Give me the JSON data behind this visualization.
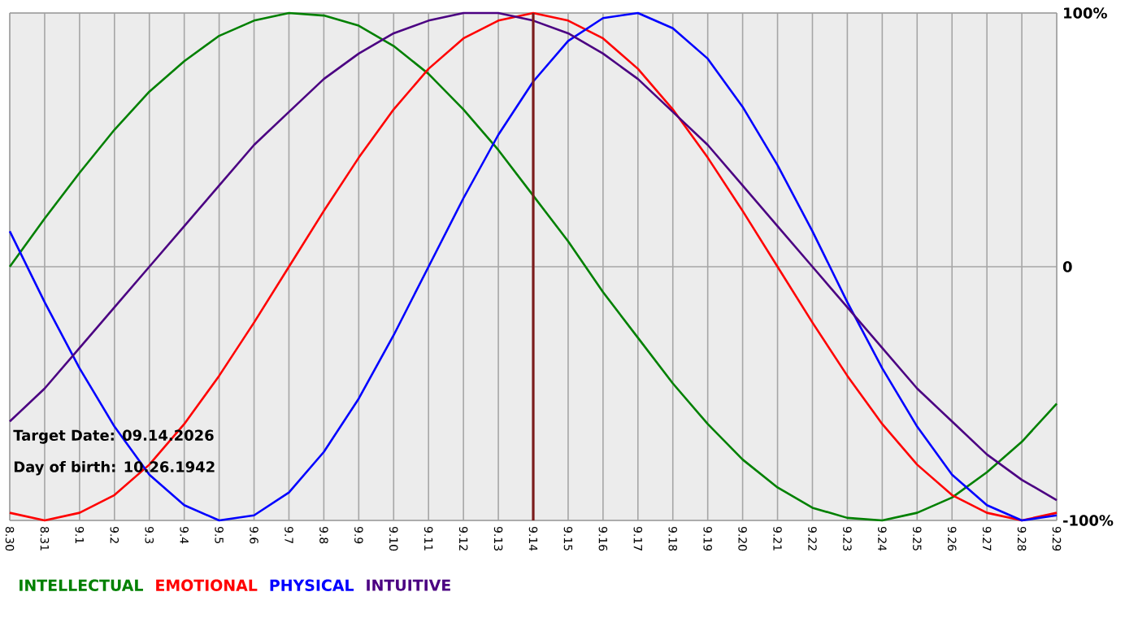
{
  "chart_data": {
    "type": "line",
    "categories": [
      "8.30",
      "8.31",
      "9.1",
      "9.2",
      "9.3",
      "9.4",
      "9.5",
      "9.6",
      "9.7",
      "9.8",
      "9.9",
      "9.10",
      "9.11",
      "9.12",
      "9.13",
      "9.14",
      "9.15",
      "9.16",
      "9.17",
      "9.18",
      "9.19",
      "9.20",
      "9.21",
      "9.22",
      "9.23",
      "9.24",
      "9.25",
      "9.26",
      "9.27",
      "9.28",
      "9.29"
    ],
    "series": [
      {
        "name": "INTELLECTUAL",
        "color": "#008000",
        "values": [
          0,
          19,
          37,
          54,
          69,
          81,
          91,
          97,
          100,
          99,
          95,
          87,
          76,
          62,
          46,
          28,
          10,
          -10,
          -28,
          -46,
          -62,
          -76,
          -87,
          -95,
          -99,
          -100,
          -97,
          -91,
          -81,
          -69,
          -54
        ]
      },
      {
        "name": "EMOTIONAL",
        "color": "#ff0000",
        "values": [
          -97,
          -100,
          -97,
          -90,
          -78,
          -62,
          -43,
          -22,
          0,
          22,
          43,
          62,
          78,
          90,
          97,
          100,
          97,
          90,
          78,
          62,
          43,
          22,
          0,
          -22,
          -43,
          -62,
          -78,
          -90,
          -97,
          -100,
          -97
        ]
      },
      {
        "name": "PHYSICAL",
        "color": "#0000ff",
        "values": [
          14,
          -14,
          -40,
          -63,
          -82,
          -94,
          -100,
          -98,
          -89,
          -73,
          -52,
          -27,
          0,
          27,
          52,
          73,
          89,
          98,
          100,
          94,
          82,
          63,
          40,
          14,
          -14,
          -40,
          -63,
          -82,
          -94,
          -100,
          -98
        ]
      },
      {
        "name": "INTUITIVE",
        "color": "#4b0082",
        "values": [
          -61,
          -48,
          -32,
          -16,
          0,
          16,
          32,
          48,
          61,
          74,
          84,
          92,
          97,
          100,
          100,
          97,
          92,
          84,
          74,
          61,
          48,
          32,
          16,
          0,
          -16,
          -32,
          -48,
          -61,
          -74,
          -84,
          -92
        ]
      }
    ],
    "ylim": [
      -100,
      100
    ],
    "yticks": [
      {
        "value": 100,
        "label": "100%"
      },
      0,
      {
        "value": -100,
        "label": "-100%"
      }
    ],
    "grid": true,
    "legend": "bottom",
    "marker": "none",
    "line_style": "solid",
    "ref_lines": [
      {
        "axis": "x",
        "value": "9.14",
        "color": "#7b1c1c"
      }
    ],
    "annotations": [
      "Target Date: 09.14.2026",
      "Day of birth: 10.26.1942"
    ]
  }
}
